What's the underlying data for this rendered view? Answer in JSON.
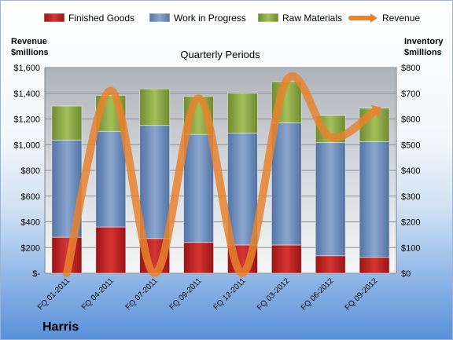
{
  "chart_data": {
    "type": "bar",
    "subtype": "stacked-bar-with-line",
    "title": "Quarterly Periods",
    "company": "Harris",
    "categories": [
      "FQ 01-2011",
      "FQ 04-2011",
      "FQ 07-2011",
      "FQ 09-2011",
      "FQ 12-2011",
      "FQ 03-2012",
      "FQ 06-2012",
      "FQ 09-2012"
    ],
    "series": [
      {
        "name": "Finished Goods",
        "axis": "right",
        "color": "#c0292a",
        "values": [
          140,
          180,
          135,
          120,
          110,
          110,
          68,
          62
        ]
      },
      {
        "name": "Work in Progress",
        "axis": "right",
        "color": "#6d8fbf",
        "values": [
          378,
          372,
          440,
          420,
          435,
          475,
          440,
          450
        ]
      },
      {
        "name": "Raw Materials",
        "axis": "right",
        "color": "#8ca744",
        "values": [
          132,
          140,
          142,
          148,
          155,
          160,
          105,
          130
        ]
      },
      {
        "name": "Revenue",
        "axis": "left",
        "color": "#e8822e",
        "type": "line",
        "values": [
          0,
          1420,
          0,
          1360,
          0,
          1500,
          1060,
          1260
        ]
      }
    ],
    "ylabel_left": "Revenue\n$millions",
    "ylabel_right": "Inventory\n$millions",
    "ylim_left": [
      0,
      1600
    ],
    "ylim_right": [
      0,
      800
    ],
    "yticks_left": [
      "$-",
      "$200",
      "$400",
      "$600",
      "$800",
      "$1,000",
      "$1,200",
      "$1,400",
      "$1,600"
    ],
    "yticks_right": [
      "$0",
      "$100",
      "$200",
      "$300",
      "$400",
      "$500",
      "$600",
      "$700",
      "$800"
    ],
    "grid": true,
    "legend_position": "top"
  }
}
